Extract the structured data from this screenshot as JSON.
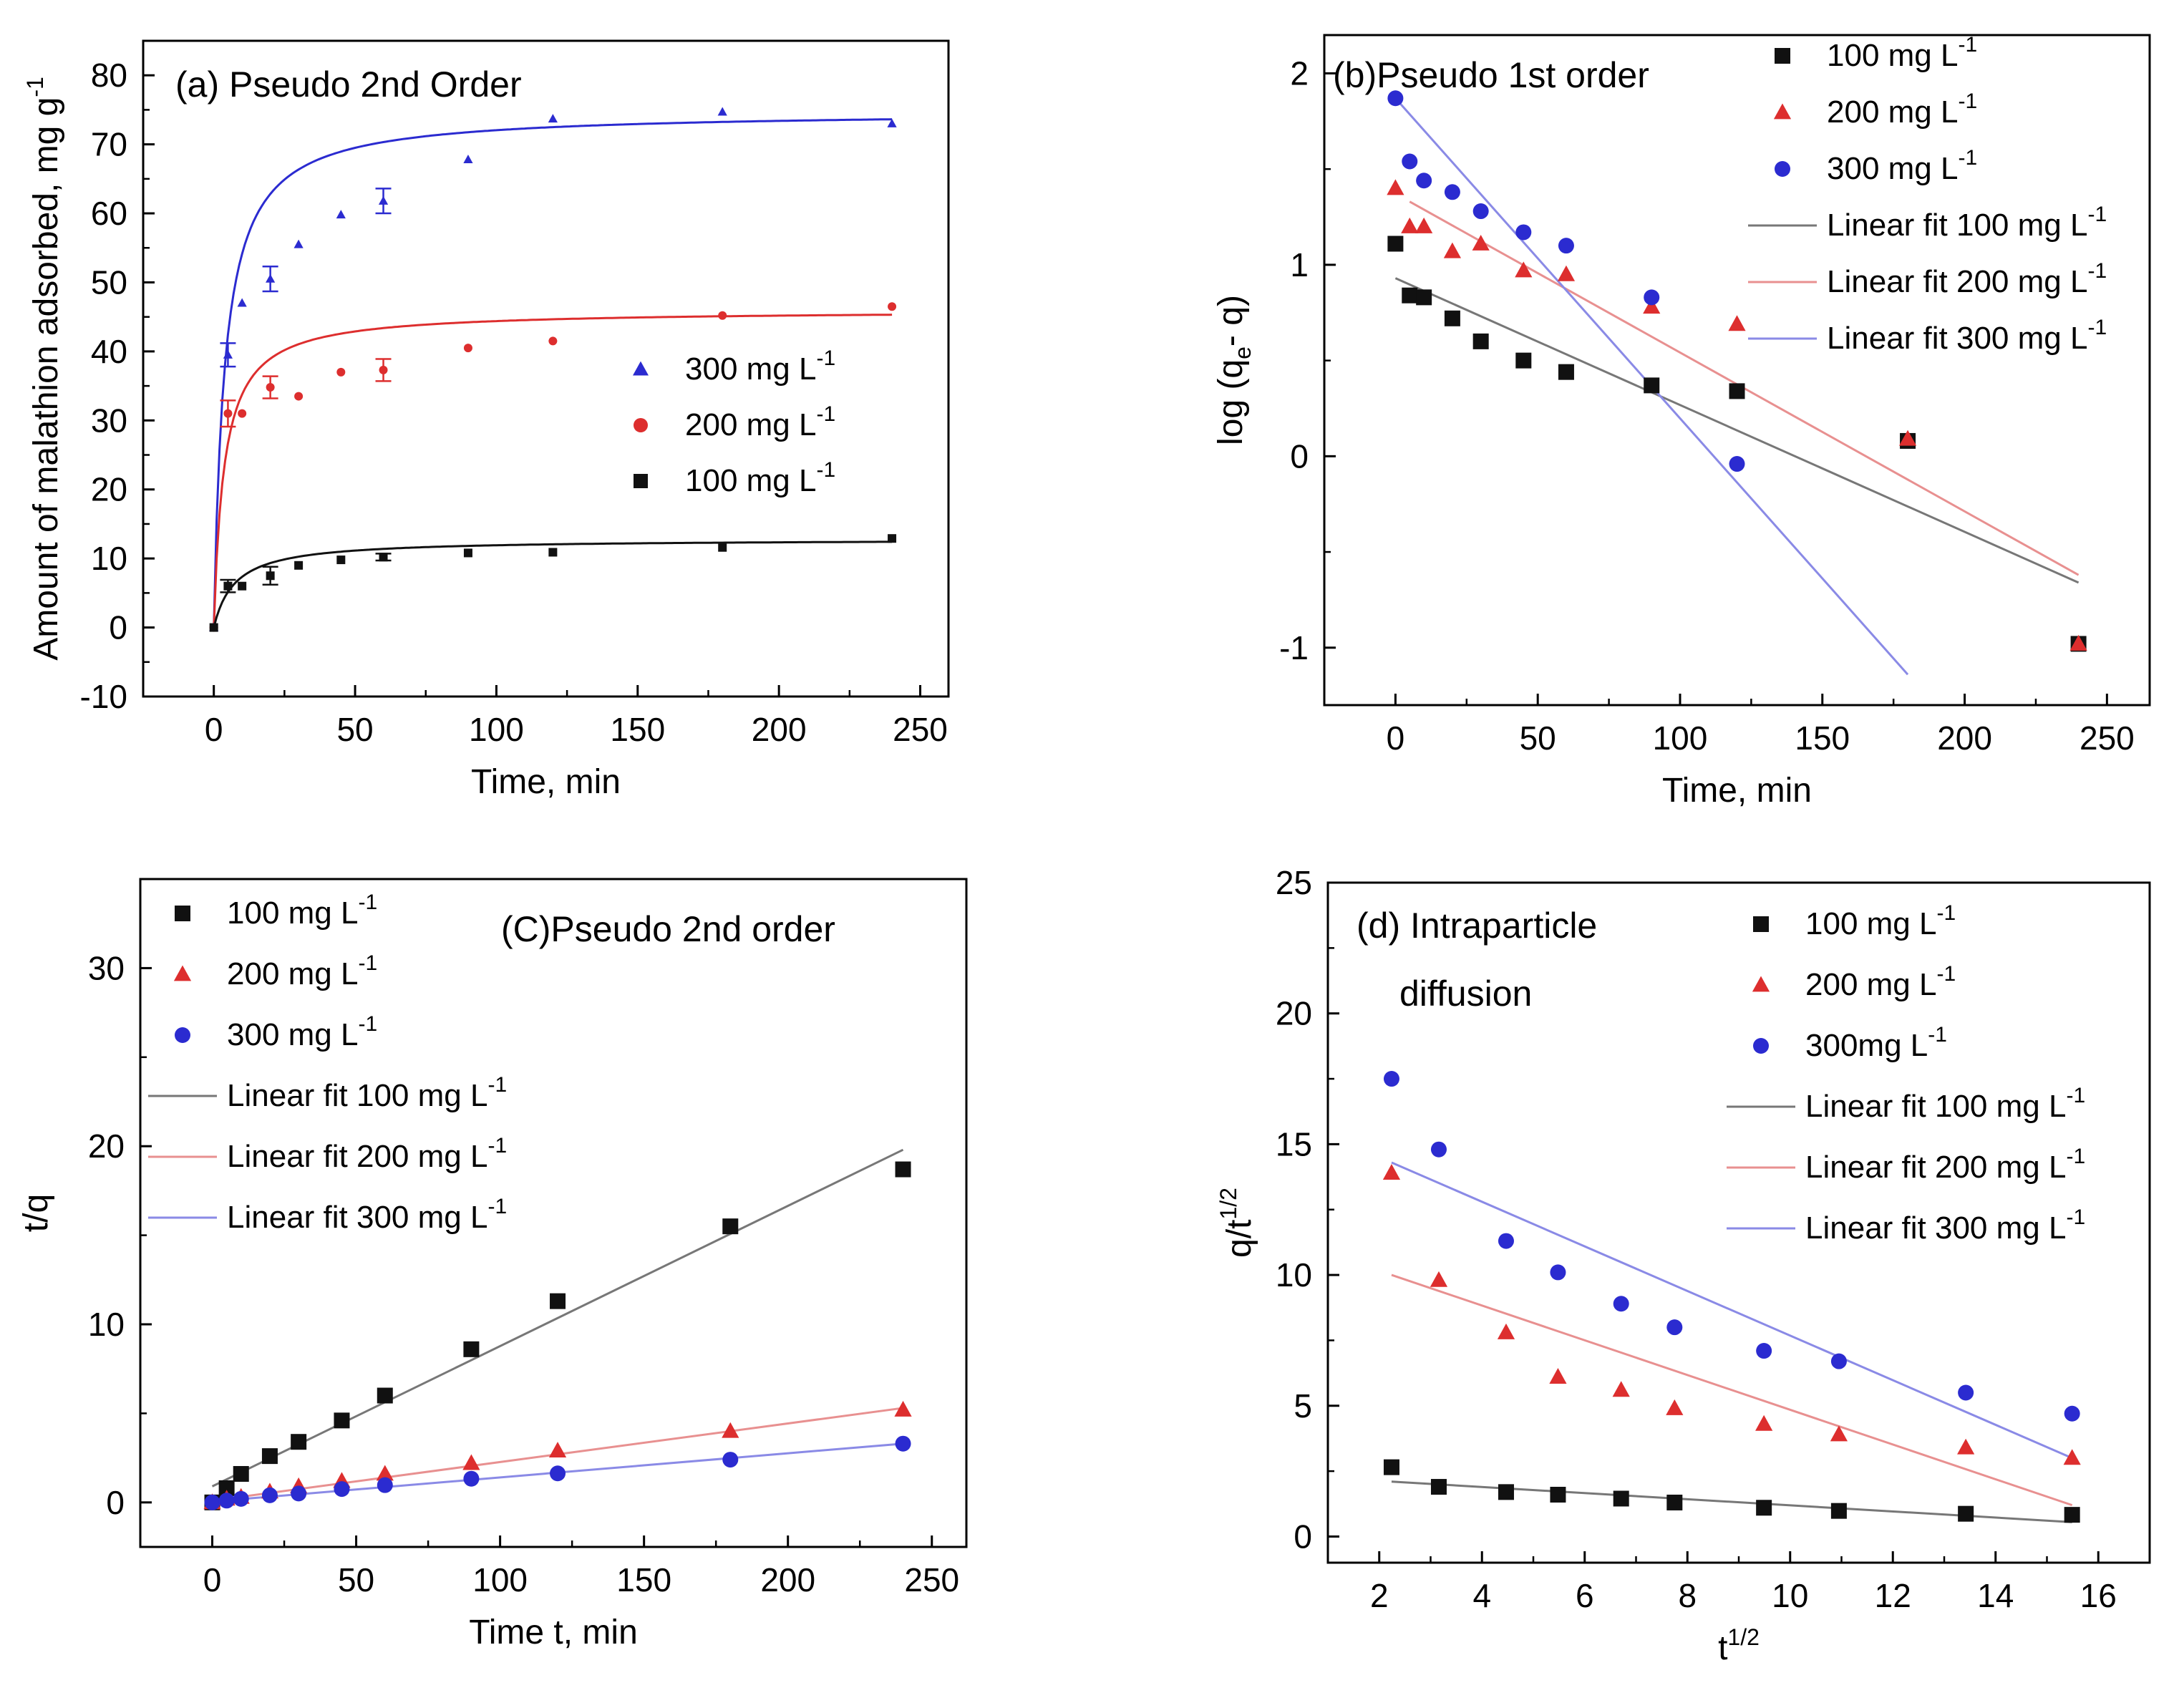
{
  "chart_data": [
    {
      "id": "a",
      "type": "scatter",
      "title": "(a) Pseudo 2nd Order",
      "xlabel": "Time, min",
      "ylabel": "Amount of malathion adsorbed, mg g",
      "ylabel_sup": "-1",
      "xlim": [
        -25,
        260
      ],
      "ylim": [
        -10,
        85
      ],
      "xticks": [
        0,
        50,
        100,
        150,
        200,
        250
      ],
      "yticks": [
        -10,
        0,
        10,
        20,
        30,
        40,
        50,
        60,
        70,
        80
      ],
      "legend_position": "center-right",
      "series": [
        {
          "name": "300 mg L",
          "sup": "-1",
          "color": "#2b2bd0",
          "marker": "triangle",
          "x": [
            0,
            5,
            10,
            20,
            30,
            45,
            60,
            90,
            120,
            180,
            240
          ],
          "y": [
            0,
            39.5,
            47,
            50.5,
            55.5,
            59.8,
            61.8,
            67.8,
            73.7,
            74.7,
            73
          ],
          "err": [
            0,
            1.7,
            0,
            1.8,
            0,
            0,
            1.8,
            0,
            0,
            0,
            0
          ],
          "fit": {
            "qe": 74.8,
            "k": 0.0035
          }
        },
        {
          "name": "200 mg L",
          "sup": "-1",
          "color": "#dd2e2e",
          "marker": "circle",
          "x": [
            0,
            5,
            10,
            20,
            30,
            45,
            60,
            90,
            120,
            180,
            240
          ],
          "y": [
            0,
            31,
            31,
            34.8,
            33.5,
            37,
            37.3,
            40.5,
            41.5,
            45.2,
            46.5
          ],
          "err": [
            0,
            1.9,
            0,
            1.6,
            0,
            0,
            1.6,
            0,
            0,
            0,
            0
          ],
          "fit": {
            "qe": 46,
            "k": 0.006
          }
        },
        {
          "name": "100 mg L",
          "sup": "-1",
          "color": "#111111",
          "marker": "square",
          "x": [
            0,
            5,
            10,
            20,
            30,
            45,
            60,
            90,
            120,
            180,
            240
          ],
          "y": [
            0,
            6,
            6,
            7.5,
            9,
            9.8,
            10.2,
            10.8,
            10.9,
            11.6,
            12.9
          ],
          "err": [
            0,
            0.9,
            0,
            1.3,
            0,
            0,
            0.5,
            0,
            0,
            0,
            0
          ],
          "fit": {
            "qe": 12.8,
            "k": 0.0105
          }
        }
      ]
    },
    {
      "id": "b",
      "type": "scatter",
      "title": "(b)Pseudo 1st order",
      "xlabel": "Time, min",
      "ylabel": "log (q",
      "ylabel_sub": "e",
      "ylabel_tail": "- q)",
      "xlim": [
        -25,
        265
      ],
      "ylim": [
        -1.3,
        2.2
      ],
      "xticks": [
        0,
        50,
        100,
        150,
        200,
        250
      ],
      "yticks": [
        -1,
        0,
        1,
        2
      ],
      "legend_position": "top-right",
      "series": [
        {
          "name": "100 mg L",
          "sup": "-1",
          "color": "#111111",
          "marker": "square",
          "x": [
            0,
            5,
            10,
            20,
            30,
            45,
            60,
            90,
            120,
            180,
            240
          ],
          "y": [
            1.11,
            0.84,
            0.83,
            0.72,
            0.6,
            0.5,
            0.44,
            0.37,
            0.34,
            0.08,
            -0.98
          ]
        },
        {
          "name": "200 mg L",
          "sup": "-1",
          "color": "#dd2e2e",
          "marker": "triangle",
          "x": [
            0,
            5,
            10,
            20,
            30,
            45,
            60,
            90,
            120,
            180,
            240
          ],
          "y": [
            1.4,
            1.2,
            1.2,
            1.07,
            1.11,
            0.97,
            0.95,
            0.78,
            0.69,
            0.09,
            -0.98
          ]
        },
        {
          "name": "300 mg L",
          "sup": "-1",
          "color": "#2b2bd0",
          "marker": "circle",
          "x": [
            0,
            5,
            10,
            20,
            30,
            45,
            60,
            90,
            120
          ],
          "y": [
            1.87,
            1.54,
            1.44,
            1.38,
            1.28,
            1.17,
            1.1,
            0.83,
            -0.04
          ]
        }
      ],
      "fits": [
        {
          "name": "Linear fit 100 mg L",
          "sup": "-1",
          "color": "#777777",
          "x": [
            0,
            240
          ],
          "y": [
            0.93,
            -0.66
          ]
        },
        {
          "name": "Linear fit 200 mg L",
          "sup": "-1",
          "color": "#e89090",
          "x": [
            5,
            240
          ],
          "y": [
            1.33,
            -0.62
          ]
        },
        {
          "name": "Linear fit 300 mg L",
          "sup": "-1",
          "color": "#8a8ae6",
          "x": [
            0,
            180
          ],
          "y": [
            1.87,
            -1.14
          ]
        }
      ]
    },
    {
      "id": "c",
      "type": "scatter",
      "title": "(C)Pseudo 2nd order",
      "xlabel": "Time t, min",
      "ylabel": "t/q",
      "xlim": [
        -25,
        262
      ],
      "ylim": [
        -2.5,
        35
      ],
      "xticks": [
        0,
        50,
        100,
        150,
        200,
        250
      ],
      "yticks": [
        0,
        10,
        20,
        30
      ],
      "legend_position": "top-left",
      "series": [
        {
          "name": "100 mg L",
          "sup": "-1",
          "color": "#111111",
          "marker": "square",
          "x": [
            0,
            5,
            10,
            20,
            30,
            45,
            60,
            90,
            120,
            180,
            240
          ],
          "y": [
            0,
            0.8,
            1.6,
            2.6,
            3.4,
            4.6,
            6.0,
            8.6,
            11.3,
            15.5,
            18.7
          ]
        },
        {
          "name": "200 mg L",
          "sup": "-1",
          "color": "#dd2e2e",
          "marker": "triangle",
          "x": [
            0,
            5,
            10,
            20,
            30,
            45,
            60,
            90,
            120,
            180,
            240
          ],
          "y": [
            0,
            0.2,
            0.3,
            0.6,
            0.9,
            1.2,
            1.6,
            2.2,
            2.9,
            4.0,
            5.2
          ]
        },
        {
          "name": "300 mg L",
          "sup": "-1",
          "color": "#2b2bd0",
          "marker": "circle",
          "x": [
            0,
            5,
            10,
            20,
            30,
            45,
            60,
            90,
            120,
            180,
            240
          ],
          "y": [
            0,
            0.1,
            0.2,
            0.4,
            0.5,
            0.75,
            0.97,
            1.33,
            1.63,
            2.4,
            3.3
          ]
        }
      ],
      "fits": [
        {
          "name": "Linear fit 100 mg L",
          "sup": "-1",
          "color": "#777777",
          "x": [
            0,
            240
          ],
          "y": [
            0.9,
            19.8
          ]
        },
        {
          "name": "Linear fit 200 mg L",
          "sup": "-1",
          "color": "#e89090",
          "x": [
            0,
            240
          ],
          "y": [
            0.1,
            5.3
          ]
        },
        {
          "name": "Linear fit 300 mg L",
          "sup": "-1",
          "color": "#8a8ae6",
          "x": [
            0,
            240
          ],
          "y": [
            0.05,
            3.3
          ]
        }
      ]
    },
    {
      "id": "d",
      "type": "scatter",
      "title": "(d) Intraparticle",
      "title2": "diffusion",
      "xlabel": "t",
      "xlabel_sup": "1/2",
      "ylabel": "q/t",
      "ylabel_sup": "1/2",
      "xlim": [
        1.0,
        17.0
      ],
      "ylim": [
        -1,
        25
      ],
      "xticks": [
        2,
        4,
        6,
        8,
        10,
        12,
        14,
        16
      ],
      "yticks": [
        0,
        5,
        10,
        15,
        20,
        25
      ],
      "legend_position": "top-right",
      "series": [
        {
          "name": "100 mg L",
          "sup": "-1",
          "color": "#111111",
          "marker": "square",
          "x": [
            2.24,
            3.16,
            4.47,
            5.48,
            6.71,
            7.75,
            9.49,
            10.95,
            13.42,
            15.49
          ],
          "y": [
            2.65,
            1.9,
            1.7,
            1.6,
            1.45,
            1.3,
            1.1,
            0.98,
            0.87,
            0.83
          ]
        },
        {
          "name": "200 mg L",
          "sup": "-1",
          "color": "#dd2e2e",
          "marker": "triangle",
          "x": [
            2.24,
            3.16,
            4.47,
            5.48,
            6.71,
            7.75,
            9.49,
            10.95,
            13.42,
            15.49
          ],
          "y": [
            13.9,
            9.8,
            7.8,
            6.1,
            5.6,
            4.9,
            4.3,
            3.9,
            3.4,
            3.0
          ]
        },
        {
          "name": "300mg L",
          "sup": "-1",
          "color": "#2b2bd0",
          "marker": "circle",
          "x": [
            2.24,
            3.16,
            4.47,
            5.48,
            6.71,
            7.75,
            9.49,
            10.95,
            13.42,
            15.49
          ],
          "y": [
            17.5,
            14.8,
            11.3,
            10.1,
            8.9,
            8.0,
            7.1,
            6.7,
            5.5,
            4.7
          ]
        }
      ],
      "fits": [
        {
          "name": "Linear fit 100 mg L",
          "sup": "-1",
          "color": "#777777",
          "x": [
            2.24,
            15.49
          ],
          "y": [
            2.1,
            0.55
          ]
        },
        {
          "name": "Linear fit 200 mg L",
          "sup": "-1",
          "color": "#e89090",
          "x": [
            2.24,
            15.49
          ],
          "y": [
            10.0,
            1.2
          ]
        },
        {
          "name": "Linear fit 300 mg L",
          "sup": "-1",
          "color": "#8a8ae6",
          "x": [
            2.24,
            15.49
          ],
          "y": [
            14.3,
            3.0
          ]
        }
      ]
    }
  ]
}
